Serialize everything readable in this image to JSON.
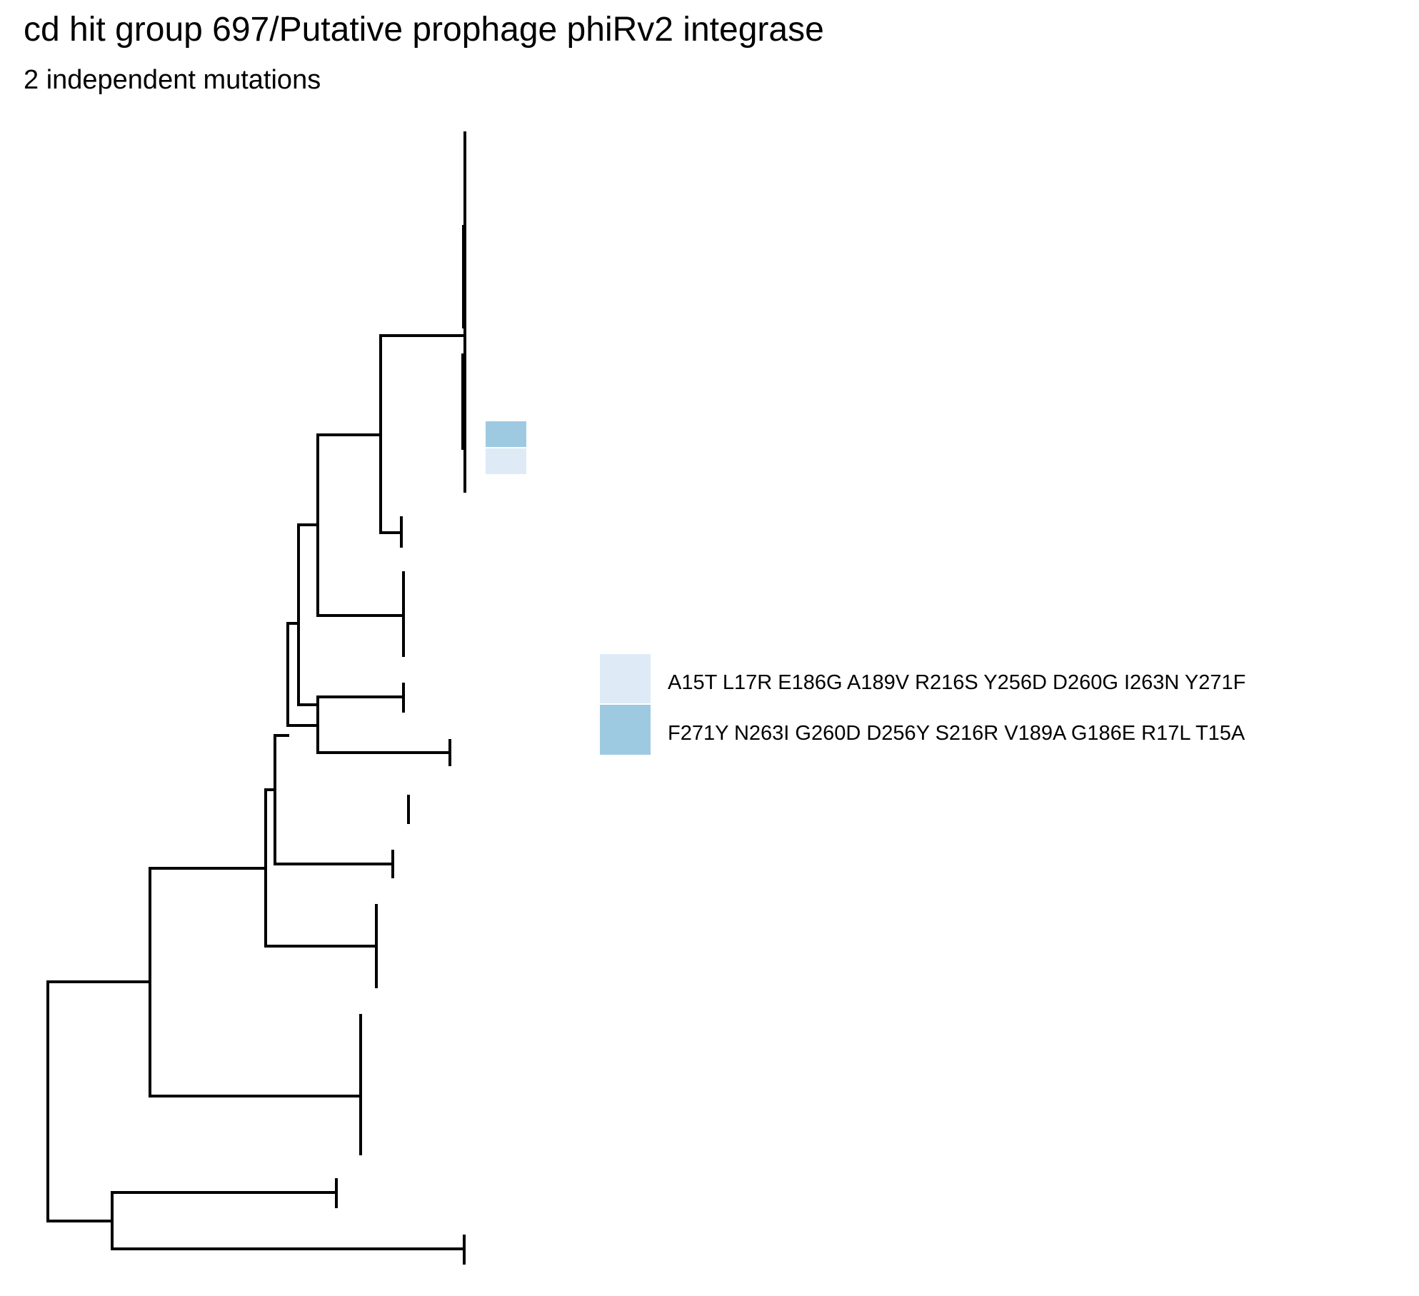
{
  "title": "cd hit group 697/Putative prophage phiRv2 integrase",
  "subtitle": "2 independent mutations",
  "legend": [
    {
      "label": "A15T L17R E186G A189V R216S Y256D D260G I263N Y271F",
      "color": "#deebf7"
    },
    {
      "label": "F271Y N263I G260D D256Y S216R V189A G186E R17L T15A",
      "color": "#9ecae1"
    }
  ],
  "tip_markers": [
    {
      "legend_index": 0,
      "color": "#9ecae1"
    },
    {
      "legend_index": 1,
      "color": "#deebf7"
    }
  ],
  "colors": {
    "branch": "#000000",
    "background": "#ffffff"
  }
}
